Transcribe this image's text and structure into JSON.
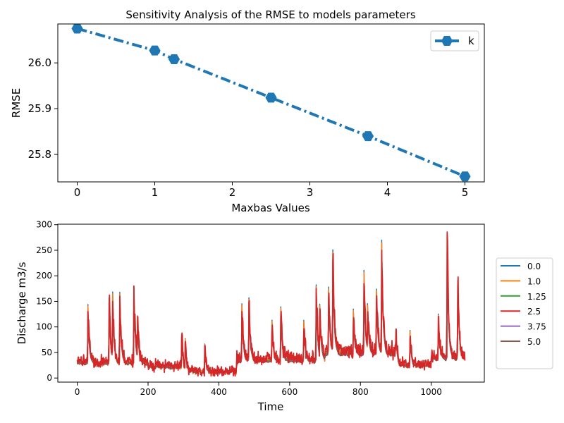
{
  "chart_data": [
    {
      "type": "line",
      "title": "Sensitivity Analysis of the RMSE to models parameters",
      "xlabel": "Maxbas Values",
      "ylabel": "RMSE",
      "xlim": [
        -0.25,
        5.25
      ],
      "ylim": [
        25.74,
        26.085
      ],
      "xticks": [
        "0",
        "1",
        "2",
        "3",
        "4",
        "5"
      ],
      "yticks": [
        "25.8",
        "25.9",
        "26.0"
      ],
      "grid": false,
      "legend_placement": "top-right",
      "line_style": "dash-dot",
      "marker": "hexagon",
      "series": [
        {
          "name": "k",
          "color": "#1f77b4",
          "x": [
            0,
            1.0,
            1.25,
            2.5,
            3.75,
            5.0
          ],
          "y": [
            26.075,
            26.027,
            26.008,
            25.924,
            25.84,
            25.752
          ]
        }
      ]
    },
    {
      "type": "line",
      "title": "",
      "xlabel": "Time",
      "ylabel": "Discharge m3/s",
      "xlim": [
        -55,
        1150
      ],
      "ylim": [
        -8,
        301
      ],
      "xticks": [
        "0",
        "200",
        "400",
        "600",
        "800",
        "1000"
      ],
      "yticks": [
        "0",
        "50",
        "100",
        "150",
        "200",
        "250",
        "300"
      ],
      "grid": false,
      "legend_placement": "right-outside",
      "x_range": [
        0,
        1095
      ],
      "events": [
        {
          "t": 30,
          "v": 130
        },
        {
          "t": 90,
          "v": 145
        },
        {
          "t": 100,
          "v": 150
        },
        {
          "t": 120,
          "v": 160
        },
        {
          "t": 160,
          "v": 180
        },
        {
          "t": 170,
          "v": 88
        },
        {
          "t": 295,
          "v": 78
        },
        {
          "t": 305,
          "v": 70
        },
        {
          "t": 360,
          "v": 63
        },
        {
          "t": 465,
          "v": 130
        },
        {
          "t": 485,
          "v": 148
        },
        {
          "t": 550,
          "v": 90
        },
        {
          "t": 575,
          "v": 120
        },
        {
          "t": 640,
          "v": 95
        },
        {
          "t": 675,
          "v": 175
        },
        {
          "t": 685,
          "v": 120
        },
        {
          "t": 710,
          "v": 155
        },
        {
          "t": 722,
          "v": 228
        },
        {
          "t": 780,
          "v": 100
        },
        {
          "t": 810,
          "v": 185
        },
        {
          "t": 820,
          "v": 95
        },
        {
          "t": 845,
          "v": 150
        },
        {
          "t": 860,
          "v": 250
        },
        {
          "t": 900,
          "v": 78
        },
        {
          "t": 940,
          "v": 75
        },
        {
          "t": 1020,
          "v": 95
        },
        {
          "t": 1045,
          "v": 285
        },
        {
          "t": 1075,
          "v": 180
        }
      ],
      "series": [
        {
          "name": "0.0",
          "color": "#1f77b4"
        },
        {
          "name": "1.0",
          "color": "#ff7f0e"
        },
        {
          "name": "1.25",
          "color": "#2ca02c"
        },
        {
          "name": "2.5",
          "color": "#d62728"
        },
        {
          "name": "3.75",
          "color": "#9467bd"
        },
        {
          "name": "5.0",
          "color": "#8c564b"
        }
      ]
    }
  ]
}
